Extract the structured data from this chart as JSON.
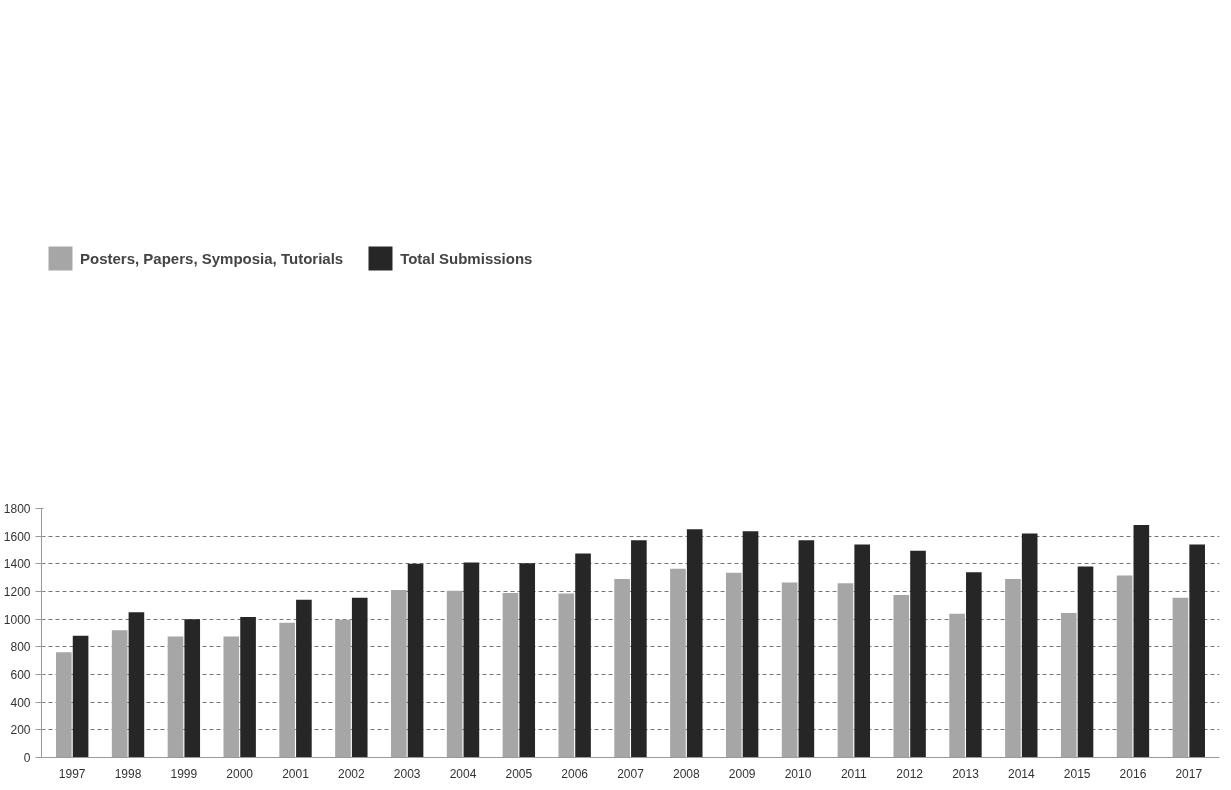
{
  "chart_data": {
    "type": "bar",
    "categories": [
      "1997",
      "1998",
      "1999",
      "2000",
      "2001",
      "2002",
      "2003",
      "2004",
      "2005",
      "2006",
      "2007",
      "2008",
      "2009",
      "2010",
      "2011",
      "2012",
      "2013",
      "2014",
      "2015",
      "2016",
      "2017"
    ],
    "series": [
      {
        "name": "Posters, Papers, Symposia, Tutorials",
        "color": "#a6a6a6",
        "values": [
          760,
          920,
          875,
          875,
          975,
          995,
          1210,
          1205,
          1190,
          1185,
          1290,
          1365,
          1335,
          1265,
          1260,
          1175,
          1040,
          1290,
          1045,
          1315,
          1155
        ]
      },
      {
        "name": "Total Submissions",
        "color": "#262626",
        "values": [
          880,
          1050,
          1000,
          1015,
          1140,
          1155,
          1400,
          1410,
          1405,
          1475,
          1570,
          1650,
          1635,
          1570,
          1540,
          1495,
          1340,
          1620,
          1380,
          1680,
          1540
        ]
      }
    ],
    "ylim": [
      0,
      1800
    ],
    "yticks": [
      0,
      200,
      400,
      600,
      800,
      1000,
      1200,
      1400,
      1600,
      1800
    ],
    "grid": "y",
    "legend": "top left"
  }
}
